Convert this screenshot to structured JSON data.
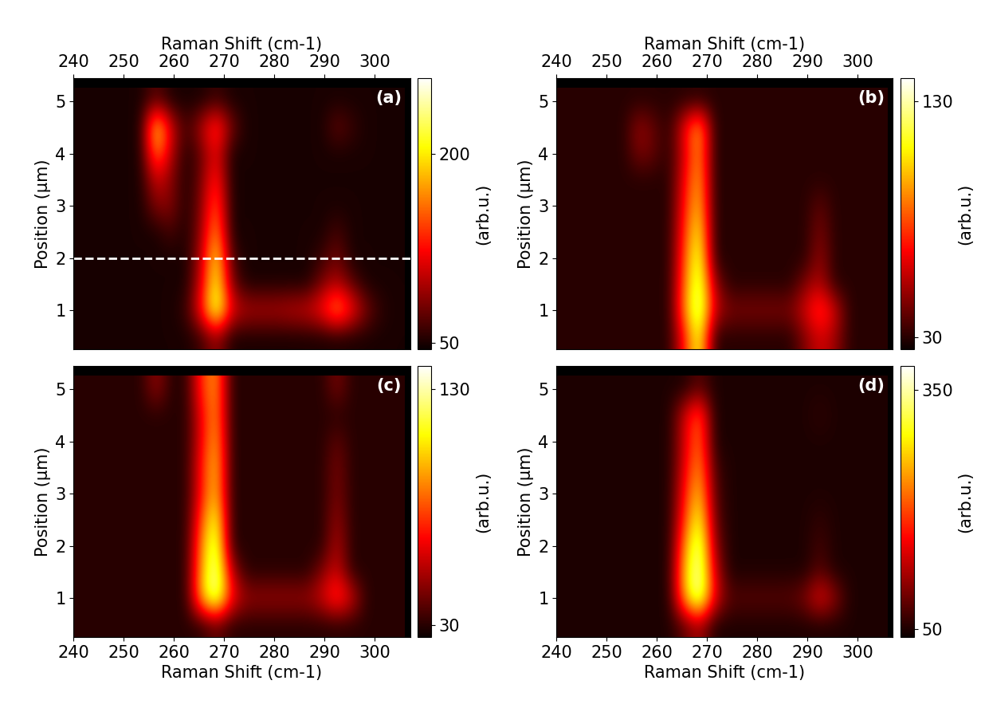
{
  "chart_data": [
    {
      "type": "heatmap",
      "title": "(a)",
      "x_label": "Raman Shift (cm-1)",
      "y_label": "Position (µm)",
      "xlim": [
        240,
        307
      ],
      "xticks": [
        240,
        250,
        260,
        270,
        280,
        290,
        300
      ],
      "ylim": [
        0.25,
        5.45
      ],
      "yticks": [
        1,
        2,
        3,
        4,
        5
      ],
      "x_edges": [
        240,
        306
      ],
      "y_edges": [
        0.25,
        5.25
      ],
      "color": "hot",
      "hline": 2,
      "colorbar": {
        "range": [
          45,
          260
        ],
        "ticks": [
          50,
          200
        ],
        "label": "(arb.u.)"
      },
      "cells": [
        [
          50,
          50,
          50,
          50,
          50,
          50,
          50,
          50,
          60,
          90,
          50,
          50,
          50,
          50,
          50,
          50,
          50,
          50,
          50,
          50,
          50,
          50
        ],
        [
          50,
          50,
          50,
          50,
          50,
          50,
          50,
          60,
          130,
          240,
          120,
          100,
          100,
          100,
          105,
          110,
          130,
          180,
          130,
          80,
          55,
          50
        ],
        [
          50,
          50,
          50,
          50,
          50,
          50,
          50,
          50,
          110,
          220,
          80,
          50,
          50,
          50,
          50,
          50,
          80,
          100,
          70,
          50,
          50,
          50
        ],
        [
          50,
          50,
          50,
          50,
          50,
          50,
          50,
          50,
          100,
          210,
          65,
          50,
          50,
          50,
          50,
          50,
          60,
          80,
          50,
          50,
          50,
          50
        ],
        [
          50,
          50,
          50,
          50,
          50,
          50,
          65,
          50,
          90,
          180,
          50,
          50,
          50,
          50,
          50,
          50,
          50,
          65,
          50,
          50,
          50,
          50
        ],
        [
          50,
          50,
          50,
          50,
          50,
          85,
          85,
          50,
          85,
          160,
          50,
          50,
          50,
          50,
          50,
          50,
          50,
          50,
          50,
          50,
          50,
          50
        ],
        [
          50,
          50,
          50,
          50,
          50,
          110,
          85,
          50,
          80,
          140,
          50,
          50,
          50,
          50,
          50,
          50,
          50,
          50,
          50,
          50,
          50,
          50
        ],
        [
          50,
          50,
          50,
          50,
          50,
          170,
          100,
          50,
          75,
          120,
          50,
          50,
          50,
          50,
          50,
          50,
          50,
          50,
          50,
          50,
          50,
          50
        ],
        [
          50,
          50,
          50,
          50,
          50,
          210,
          110,
          60,
          100,
          150,
          80,
          50,
          50,
          50,
          50,
          50,
          50,
          75,
          60,
          50,
          50,
          50
        ],
        [
          50,
          50,
          50,
          50,
          50,
          70,
          50,
          50,
          50,
          60,
          50,
          50,
          50,
          50,
          50,
          50,
          50,
          50,
          50,
          50,
          50,
          50
        ]
      ]
    },
    {
      "type": "heatmap",
      "title": "(b)",
      "x_label": "Raman Shift (cm-1)",
      "y_label": "Position (µm)",
      "xlim": [
        240,
        307
      ],
      "xticks": [
        240,
        250,
        260,
        270,
        280,
        290,
        300
      ],
      "ylim": [
        0.25,
        5.45
      ],
      "yticks": [
        1,
        2,
        3,
        4,
        5
      ],
      "x_edges": [
        240,
        306
      ],
      "y_edges": [
        0.25,
        5.25
      ],
      "color": "hot",
      "colorbar": {
        "range": [
          25,
          140
        ],
        "ticks": [
          30,
          130
        ],
        "label": "(arb.u.)"
      },
      "cells": [
        [
          30,
          30,
          30,
          30,
          30,
          30,
          30,
          30,
          70,
          120,
          30,
          30,
          30,
          30,
          30,
          30,
          45,
          60,
          50,
          30,
          30,
          30
        ],
        [
          30,
          30,
          30,
          30,
          30,
          30,
          30,
          30,
          90,
          135,
          60,
          45,
          45,
          45,
          45,
          45,
          60,
          80,
          60,
          30,
          30,
          30
        ],
        [
          30,
          30,
          30,
          30,
          30,
          30,
          30,
          30,
          85,
          130,
          50,
          30,
          30,
          30,
          30,
          30,
          45,
          55,
          30,
          30,
          30,
          30
        ],
        [
          30,
          30,
          30,
          30,
          30,
          30,
          30,
          30,
          80,
          125,
          30,
          30,
          30,
          30,
          30,
          30,
          30,
          50,
          30,
          30,
          30,
          30
        ],
        [
          30,
          30,
          30,
          30,
          30,
          30,
          30,
          30,
          75,
          115,
          30,
          30,
          30,
          30,
          30,
          30,
          30,
          45,
          30,
          30,
          30,
          30
        ],
        [
          30,
          30,
          30,
          30,
          30,
          30,
          30,
          30,
          70,
          105,
          30,
          30,
          30,
          30,
          30,
          30,
          30,
          40,
          30,
          30,
          30,
          30
        ],
        [
          30,
          30,
          30,
          30,
          30,
          30,
          30,
          30,
          65,
          100,
          30,
          30,
          30,
          30,
          30,
          30,
          30,
          30,
          30,
          30,
          30,
          30
        ],
        [
          30,
          30,
          30,
          30,
          30,
          45,
          40,
          30,
          60,
          95,
          30,
          30,
          30,
          30,
          30,
          30,
          30,
          30,
          30,
          30,
          30,
          30
        ],
        [
          30,
          30,
          30,
          30,
          30,
          50,
          40,
          30,
          65,
          100,
          30,
          30,
          30,
          30,
          30,
          30,
          30,
          30,
          30,
          30,
          30,
          30
        ],
        [
          30,
          30,
          30,
          30,
          30,
          30,
          30,
          30,
          30,
          30,
          30,
          30,
          30,
          30,
          30,
          30,
          30,
          30,
          30,
          30,
          30,
          30
        ]
      ]
    },
    {
      "type": "heatmap",
      "title": "(c)",
      "x_label": "Raman Shift (cm-1)",
      "y_label": "Position (µm)",
      "xlim": [
        240,
        307
      ],
      "xticks": [
        240,
        250,
        260,
        270,
        280,
        290,
        300
      ],
      "ylim": [
        0.25,
        5.45
      ],
      "yticks": [
        1,
        2,
        3,
        4,
        5
      ],
      "x_edges": [
        240,
        306
      ],
      "y_edges": [
        0.25,
        5.25
      ],
      "color": "hot",
      "colorbar": {
        "range": [
          25,
          140
        ],
        "ticks": [
          30,
          130
        ],
        "label": "(arb.u.)"
      },
      "cells": [
        [
          30,
          30,
          30,
          30,
          30,
          30,
          30,
          30,
          30,
          40,
          30,
          30,
          30,
          30,
          30,
          30,
          30,
          30,
          30,
          30,
          30,
          30
        ],
        [
          30,
          30,
          30,
          30,
          30,
          30,
          30,
          30,
          100,
          135,
          70,
          50,
          50,
          50,
          50,
          50,
          60,
          80,
          60,
          30,
          30,
          30
        ],
        [
          30,
          30,
          30,
          30,
          30,
          30,
          30,
          30,
          95,
          135,
          55,
          30,
          30,
          30,
          30,
          30,
          45,
          60,
          30,
          30,
          30,
          30
        ],
        [
          30,
          30,
          30,
          30,
          30,
          30,
          30,
          30,
          90,
          130,
          30,
          30,
          30,
          30,
          30,
          30,
          30,
          55,
          30,
          30,
          30,
          30
        ],
        [
          30,
          30,
          30,
          30,
          30,
          30,
          30,
          30,
          80,
          120,
          30,
          30,
          30,
          30,
          30,
          30,
          30,
          50,
          30,
          30,
          30,
          30
        ],
        [
          30,
          30,
          30,
          30,
          30,
          30,
          30,
          30,
          70,
          105,
          30,
          30,
          30,
          30,
          30,
          30,
          30,
          45,
          30,
          30,
          30,
          30
        ],
        [
          30,
          30,
          30,
          30,
          30,
          30,
          30,
          30,
          70,
          105,
          30,
          30,
          30,
          30,
          30,
          30,
          30,
          45,
          30,
          30,
          30,
          30
        ],
        [
          30,
          30,
          30,
          30,
          30,
          30,
          30,
          30,
          65,
          100,
          30,
          30,
          30,
          30,
          30,
          30,
          30,
          40,
          30,
          30,
          30,
          30
        ],
        [
          30,
          30,
          30,
          30,
          30,
          30,
          30,
          30,
          65,
          95,
          30,
          30,
          30,
          30,
          30,
          30,
          30,
          30,
          30,
          30,
          30,
          30
        ],
        [
          30,
          30,
          30,
          30,
          30,
          50,
          30,
          30,
          75,
          95,
          30,
          30,
          30,
          30,
          30,
          30,
          30,
          45,
          30,
          30,
          30,
          30
        ]
      ]
    },
    {
      "type": "heatmap",
      "title": "(d)",
      "x_label": "Raman Shift (cm-1)",
      "y_label": "Position (µm)",
      "xlim": [
        240,
        307
      ],
      "xticks": [
        240,
        250,
        260,
        270,
        280,
        290,
        300
      ],
      "ylim": [
        0.25,
        5.45
      ],
      "yticks": [
        1,
        2,
        3,
        4,
        5
      ],
      "x_edges": [
        240,
        306
      ],
      "y_edges": [
        0.25,
        5.25
      ],
      "color": "hot",
      "colorbar": {
        "range": [
          40,
          380
        ],
        "ticks": [
          50,
          350
        ],
        "label": "(arb.u.)"
      },
      "cells": [
        [
          50,
          50,
          50,
          50,
          50,
          50,
          50,
          50,
          80,
          120,
          50,
          50,
          50,
          50,
          50,
          50,
          50,
          50,
          50,
          50,
          50,
          50
        ],
        [
          50,
          50,
          50,
          50,
          50,
          50,
          50,
          50,
          250,
          370,
          160,
          80,
          80,
          80,
          80,
          80,
          100,
          160,
          110,
          50,
          50,
          50
        ],
        [
          50,
          50,
          50,
          50,
          50,
          50,
          50,
          50,
          260,
          370,
          140,
          50,
          50,
          50,
          50,
          50,
          50,
          80,
          50,
          50,
          50,
          50
        ],
        [
          50,
          50,
          50,
          50,
          50,
          50,
          50,
          50,
          230,
          360,
          110,
          50,
          50,
          50,
          50,
          50,
          50,
          70,
          50,
          50,
          50,
          50
        ],
        [
          50,
          50,
          50,
          50,
          50,
          50,
          50,
          50,
          190,
          320,
          90,
          50,
          50,
          50,
          50,
          50,
          50,
          60,
          50,
          50,
          50,
          50
        ],
        [
          50,
          50,
          50,
          50,
          50,
          50,
          50,
          50,
          170,
          280,
          80,
          50,
          50,
          50,
          50,
          50,
          50,
          50,
          50,
          50,
          50,
          50
        ],
        [
          50,
          50,
          50,
          50,
          50,
          50,
          50,
          50,
          150,
          250,
          70,
          50,
          50,
          50,
          50,
          50,
          50,
          50,
          50,
          50,
          50,
          50
        ],
        [
          50,
          50,
          50,
          50,
          50,
          50,
          50,
          50,
          140,
          230,
          50,
          50,
          50,
          50,
          50,
          50,
          50,
          50,
          50,
          50,
          50,
          50
        ],
        [
          50,
          50,
          50,
          50,
          50,
          50,
          50,
          50,
          140,
          220,
          50,
          50,
          50,
          50,
          50,
          50,
          50,
          60,
          50,
          50,
          50,
          50
        ],
        [
          50,
          50,
          50,
          50,
          50,
          50,
          50,
          50,
          50,
          80,
          50,
          50,
          50,
          50,
          50,
          50,
          50,
          50,
          50,
          50,
          50,
          50
        ]
      ]
    }
  ]
}
